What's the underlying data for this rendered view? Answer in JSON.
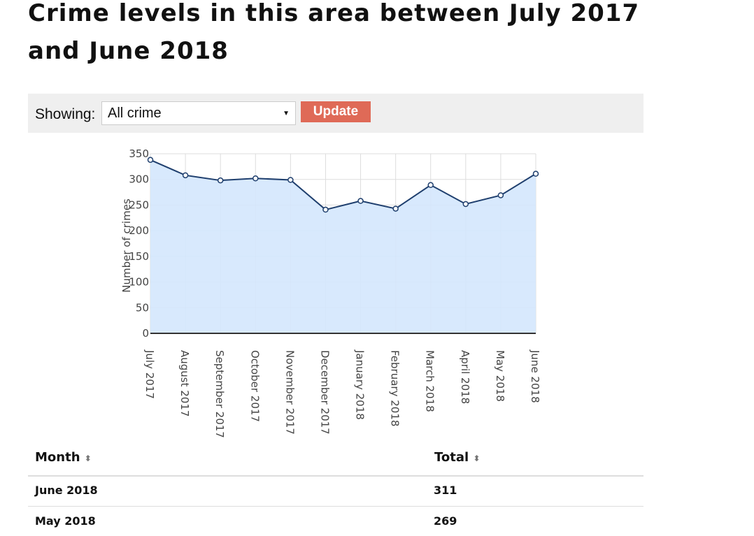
{
  "header": {
    "title": "Crime levels in this area between July 2017 and June 2018"
  },
  "controls": {
    "label": "Showing:",
    "selected": "All crime",
    "button": "Update"
  },
  "chart_data": {
    "type": "area",
    "y_label": "Number of crimes",
    "categories": [
      "July 2017",
      "August 2017",
      "September 2017",
      "October 2017",
      "November 2017",
      "December 2017",
      "January 2018",
      "February 2018",
      "March 2018",
      "April 2018",
      "May 2018",
      "June 2018"
    ],
    "values": [
      338,
      308,
      298,
      302,
      299,
      241,
      258,
      243,
      289,
      252,
      269,
      311
    ],
    "color": "#1f3f6e",
    "fill": "#d4e7fd",
    "ylim": [
      0,
      350
    ],
    "yticks": [
      0,
      50,
      100,
      150,
      200,
      250,
      300,
      350
    ],
    "grid": true
  },
  "table": {
    "columns": [
      "Month",
      "Total"
    ],
    "rows": [
      [
        "June 2018",
        311
      ],
      [
        "May 2018",
        269
      ]
    ]
  }
}
